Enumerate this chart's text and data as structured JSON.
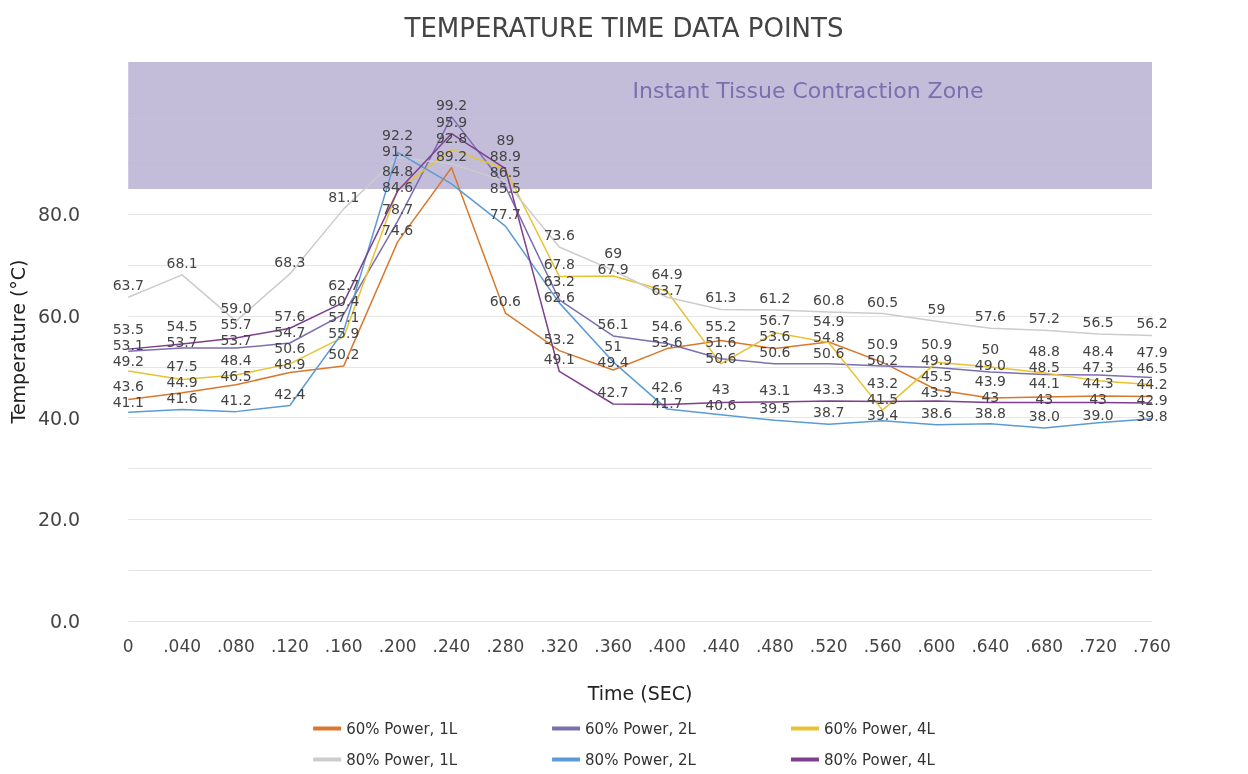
{
  "chart_data": {
    "type": "line",
    "title": "TEMPERATURE TIME DATA POINTS",
    "xlabel": "Time (SEC)",
    "ylabel": "Temperature (°C)",
    "categories": [
      "0",
      ".040",
      ".080",
      ".120",
      ".160",
      ".200",
      ".240",
      ".280",
      ".320",
      ".360",
      ".400",
      ".440",
      ".480",
      ".520",
      ".560",
      ".600",
      ".640",
      ".680",
      ".720",
      ".760"
    ],
    "series": [
      {
        "name": "60% Power, 1L",
        "color": "#d9782d",
        "values": [
          43.6,
          44.9,
          46.5,
          48.9,
          50.2,
          74.6,
          89.2,
          60.6,
          53.2,
          49.4,
          53.6,
          55.2,
          53.6,
          54.9,
          50.9,
          45.5,
          43.9,
          44.1,
          44.3,
          44.2
        ],
        "value_labels": [
          "43.6",
          "44.9",
          "46.5",
          "48.9",
          "50.2",
          "74.6",
          "89.2",
          "60.6",
          "53.2",
          "49.4",
          "53.6",
          "55.2",
          "53.6",
          "54.9",
          "50.9",
          "45.5",
          "43.9",
          "44.1",
          "44.3",
          "44.2"
        ]
      },
      {
        "name": "60% Power, 2L",
        "color": "#7b6fb0",
        "values": [
          53.1,
          53.7,
          53.7,
          54.7,
          60.4,
          78.7,
          99.2,
          85.5,
          63.2,
          56.1,
          54.6,
          51.6,
          50.6,
          50.6,
          50.2,
          49.9,
          49.0,
          48.5,
          48.4,
          47.9
        ],
        "value_labels": [
          "53.1",
          "53.7",
          "53.7",
          "54.7",
          "60.4",
          "78.7",
          "99.2",
          "85.5",
          "63.2",
          "56.1",
          "54.6",
          "51.6",
          "50.6",
          "50.6",
          "50.2",
          "49.9",
          "49.0",
          "48.5",
          "48.4",
          "47.9"
        ]
      },
      {
        "name": "60% Power, 4L",
        "color": "#e8c232",
        "values": [
          49.2,
          47.5,
          48.4,
          50.6,
          55.9,
          84.8,
          92.8,
          88.9,
          67.8,
          67.9,
          64.9,
          50.6,
          56.7,
          54.8,
          41.5,
          50.9,
          50,
          48.8,
          47.3,
          46.5
        ],
        "value_labels": [
          "49.2",
          "47.5",
          "48.4",
          "50.6",
          "55.9",
          "84.8",
          "92.8",
          "88.9",
          "67.8",
          "67.9",
          "64.9",
          "50.6",
          "56.7",
          "54.8",
          "41.5",
          "50.9",
          "50",
          "48.8",
          "47.3",
          "46.5"
        ]
      },
      {
        "name": "80% Power, 1L",
        "color": "#cccccc",
        "values": [
          63.7,
          68.1,
          59.0,
          68.3,
          81.1,
          91.2,
          90,
          86.5,
          73.6,
          69,
          63.7,
          61.3,
          61.2,
          60.8,
          60.5,
          59,
          57.6,
          57.2,
          56.5,
          56.2
        ],
        "value_labels": [
          "63.7",
          "68.1",
          "59.0",
          "68.3",
          "81.1",
          "91.2",
          null,
          "86.5",
          "73.6",
          "69",
          "63.7",
          "61.3",
          "61.2",
          "60.8",
          "60.5",
          "59",
          "57.6",
          "57.2",
          "56.5",
          "56.2"
        ]
      },
      {
        "name": "80% Power, 2L",
        "color": "#5b9bd5",
        "values": [
          41.1,
          41.6,
          41.2,
          42.4,
          57.1,
          92.2,
          86,
          77.7,
          62.6,
          51,
          41.7,
          40.6,
          39.5,
          38.7,
          39.4,
          38.6,
          38.8,
          38.0,
          39.0,
          39.8
        ],
        "value_labels": [
          "41.1",
          "41.6",
          "41.2",
          "42.4",
          "57.1",
          "92.2",
          null,
          "77.7",
          "62.6",
          "51",
          "41.7",
          "40.6",
          "39.5",
          "38.7",
          "39.4",
          "38.6",
          "38.8",
          "38.0",
          "39.0",
          "39.8"
        ]
      },
      {
        "name": "80% Power, 4L",
        "color": "#7e3f8f",
        "values": [
          53.5,
          54.5,
          55.7,
          57.6,
          62.7,
          84.6,
          95.9,
          89,
          49.1,
          42.7,
          42.6,
          43,
          43.1,
          43.3,
          43.2,
          43.3,
          43,
          43,
          43,
          42.9
        ],
        "value_labels": [
          "53.5",
          "54.5",
          "55.7",
          "57.6",
          "62.7",
          "84.6",
          "95.9",
          "89",
          "49.1",
          "42.7",
          "42.6",
          "43",
          "43.1",
          "43.3",
          "43.2",
          "43.3",
          "43",
          "43",
          "43",
          "42.9"
        ]
      }
    ],
    "ylim": [
      0,
      110
    ],
    "yticks": [
      {
        "value": 0,
        "label": "0.0"
      },
      {
        "value": 10,
        "label": null
      },
      {
        "value": 20,
        "label": "20.0"
      },
      {
        "value": 30,
        "label": null
      },
      {
        "value": 40,
        "label": "40.0"
      },
      {
        "value": 50,
        "label": null
      },
      {
        "value": 60,
        "label": "60.0"
      },
      {
        "value": 70,
        "label": null
      },
      {
        "value": 80,
        "label": "80.0"
      },
      {
        "value": 90,
        "label": null
      },
      {
        "value": 100,
        "label": null
      },
      {
        "value": 110,
        "label": null
      }
    ],
    "bands": [
      {
        "axis": "y",
        "from": 85,
        "to": 110,
        "label": "Instant Tissue Contraction Zone",
        "color": "#b9b2d4"
      }
    ],
    "grid": "y",
    "legend": "bottom"
  }
}
